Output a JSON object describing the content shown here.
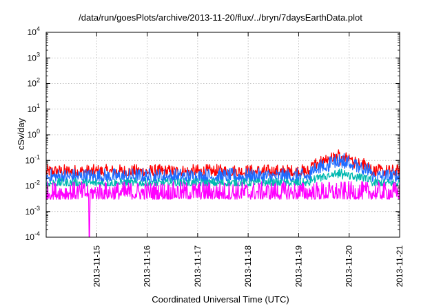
{
  "chart_data": {
    "type": "line",
    "title": "/data/run/goesPlots/archive/2013-11-20/flux/../bryn/7daysEarthData.plot",
    "xlabel": "Coordinated Universal Time (UTC)",
    "ylabel": "cSv/day",
    "yscale": "log",
    "ylim": [
      0.0001,
      10000
    ],
    "xlim": [
      "2013-11-14 00:00",
      "2013-11-21 00:00"
    ],
    "y_ticks": [
      {
        "value": 0.0001,
        "base": "10",
        "exp": "-4"
      },
      {
        "value": 0.001,
        "base": "10",
        "exp": "-3"
      },
      {
        "value": 0.01,
        "base": "10",
        "exp": "-2"
      },
      {
        "value": 0.1,
        "base": "10",
        "exp": "-1"
      },
      {
        "value": 1,
        "base": "10",
        "exp": "0"
      },
      {
        "value": 10,
        "base": "10",
        "exp": "1"
      },
      {
        "value": 100,
        "base": "10",
        "exp": "2"
      },
      {
        "value": 1000,
        "base": "10",
        "exp": "3"
      },
      {
        "value": 10000,
        "base": "10",
        "exp": "4"
      }
    ],
    "x_ticks": [
      "2013-11-15",
      "2013-11-16",
      "2013-11-17",
      "2013-11-18",
      "2013-11-19",
      "2013-11-20",
      "2013-11-21"
    ],
    "grid": true,
    "series": [
      {
        "color": "#ff0000",
        "typical_range": [
          0.025,
          0.07
        ],
        "peak": 0.25,
        "peak_at": "2013-11-19 20:00"
      },
      {
        "color": "#1e6bff",
        "typical_range": [
          0.015,
          0.05
        ],
        "peak": 0.18,
        "peak_at": "2013-11-19 20:00"
      },
      {
        "color": "#00b8b0",
        "typical_range": [
          0.01,
          0.02
        ],
        "peak": 0.04,
        "peak_at": "2013-11-19 20:00"
      },
      {
        "color": "#ff00ff",
        "typical_range": [
          0.003,
          0.015
        ],
        "min": 0.0001,
        "min_at": "2013-11-14 20:30"
      }
    ]
  }
}
